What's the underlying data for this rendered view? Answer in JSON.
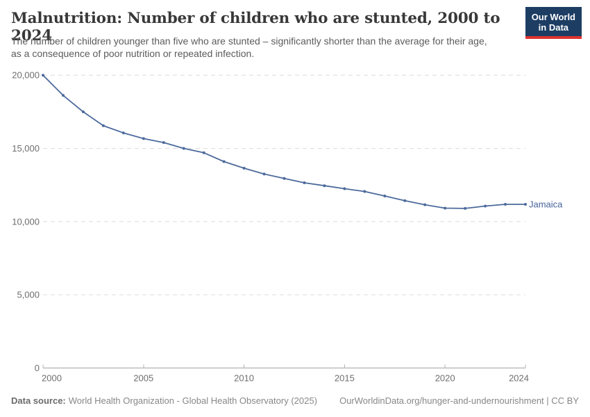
{
  "header": {
    "title": "Malnutrition: Number of children who are stunted, 2000 to 2024",
    "subtitle_line1": "The number of children younger than five who are stunted – significantly shorter than the average for their age,",
    "subtitle_line2": "as a consequence of poor nutrition or repeated infection.",
    "logo": {
      "line1": "Our World",
      "line2": "in Data",
      "bg_color": "#1d3d63",
      "accent_color": "#e0332e"
    }
  },
  "chart_data": {
    "type": "line",
    "title": "Malnutrition: Number of children who are stunted, 2000 to 2024",
    "xlabel": "",
    "ylabel": "",
    "xlim": [
      2000,
      2024
    ],
    "ylim": [
      0,
      20000
    ],
    "grid": "horizontal-dashed",
    "legend_position": "line-end-label",
    "xticks": [
      2000,
      2005,
      2010,
      2015,
      2020,
      2024
    ],
    "xtick_labels": [
      "2000",
      "2005",
      "2010",
      "2015",
      "2020",
      "2024"
    ],
    "yticks": [
      0,
      5000,
      10000,
      15000,
      20000
    ],
    "ytick_labels": [
      "0",
      "5,000",
      "10,000",
      "15,000",
      "20,000"
    ],
    "series": [
      {
        "name": "Jamaica",
        "color": "#4c6a9c",
        "x": [
          2000,
          2001,
          2002,
          2003,
          2004,
          2005,
          2006,
          2007,
          2008,
          2009,
          2010,
          2011,
          2012,
          2013,
          2014,
          2015,
          2016,
          2017,
          2018,
          2019,
          2020,
          2021,
          2022,
          2023,
          2024
        ],
        "values": [
          20000,
          18620,
          17500,
          16550,
          16060,
          15670,
          15400,
          15000,
          14700,
          14100,
          13650,
          13250,
          12950,
          12650,
          12450,
          12250,
          12060,
          11750,
          11430,
          11150,
          10920,
          10900,
          11060,
          11180,
          11180
        ]
      }
    ]
  },
  "colors": {
    "line": "#4c6a9c",
    "end_label": "#46639a",
    "grid": "#dcdcdc",
    "axis": "#a3a3a3",
    "tick": "#b3b3b3",
    "tick_label": "#6e6e6e"
  },
  "footer": {
    "source_label": "Data source:",
    "source_text": "World Health Organization - Global Health Observatory (2025)",
    "link_text": "OurWorldinData.org/hunger-and-undernourishment | CC BY"
  }
}
